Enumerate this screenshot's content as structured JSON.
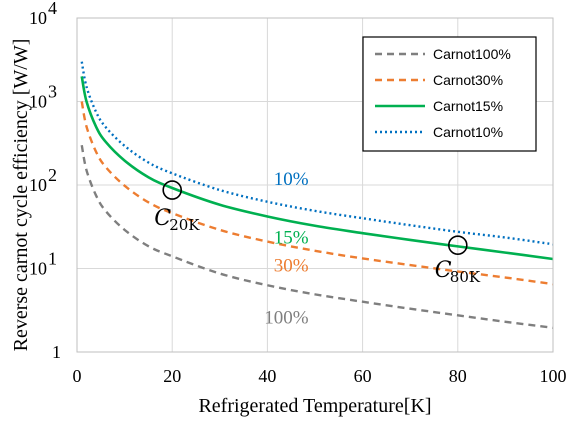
{
  "chart_data": {
    "type": "line",
    "xlabel": "Refrigerated Temperature[K]",
    "ylabel": "Reverse carnot cycle efficiency [W/W]",
    "xlim": [
      0,
      100
    ],
    "ylim": [
      1,
      10000
    ],
    "yscale": "log",
    "grid": true,
    "legend_position": "top-right",
    "x_ticks": [
      {
        "value": 0,
        "label": "0"
      },
      {
        "value": 20,
        "label": "20"
      },
      {
        "value": 40,
        "label": "40"
      },
      {
        "value": 60,
        "label": "60"
      },
      {
        "value": 80,
        "label": "80"
      },
      {
        "value": 100,
        "label": "100"
      }
    ],
    "y_ticks": [
      {
        "value": 1,
        "base": "1",
        "exp": ""
      },
      {
        "value": 10,
        "base": "10",
        "exp": "1"
      },
      {
        "value": 100,
        "base": "10",
        "exp": "2"
      },
      {
        "value": 1000,
        "base": "10",
        "exp": "3"
      },
      {
        "value": 10000,
        "base": "10",
        "exp": "4"
      }
    ],
    "x": [
      1,
      2,
      4,
      6,
      10,
      15,
      20,
      30,
      40,
      50,
      60,
      70,
      80,
      90,
      100
    ],
    "series": [
      {
        "name": "Carnot100%",
        "color": "#7f7f7f",
        "dash": "dashed",
        "values": [
          300,
          150,
          75,
          49,
          29,
          18.5,
          14,
          8.7,
          6.3,
          4.9,
          4,
          3.3,
          2.75,
          2.3,
          1.95
        ]
      },
      {
        "name": "Carnot30%",
        "color": "#ed7d31",
        "dash": "dashed",
        "values": [
          1000,
          500,
          250,
          165,
          98,
          62,
          46,
          29,
          21,
          16.3,
          13.2,
          11,
          9.2,
          7.8,
          6.5
        ]
      },
      {
        "name": "Carnot15%",
        "color": "#00b050",
        "dash": "solid",
        "values": [
          2000,
          1000,
          500,
          330,
          196,
          124,
          92,
          58,
          42,
          32.5,
          26.5,
          22,
          18.4,
          15.5,
          13
        ]
      },
      {
        "name": "Carnot10%",
        "color": "#0070c0",
        "dash": "dotted",
        "values": [
          3000,
          1500,
          750,
          495,
          294,
          186,
          138,
          87,
          63,
          49,
          40,
          33,
          27.5,
          23.5,
          19.5
        ]
      }
    ],
    "annotations": [
      {
        "text": "10%",
        "x": 45,
        "y": 100,
        "color": "#0070c0"
      },
      {
        "text": "15%",
        "x": 45,
        "y": 20,
        "color": "#00b050"
      },
      {
        "text": "30%",
        "x": 45,
        "y": 9.2,
        "color": "#ed7d31"
      },
      {
        "text": "100%",
        "x": 44,
        "y": 2.2,
        "color": "#7f7f7f"
      }
    ],
    "markers": [
      {
        "label": "C",
        "subscript": "20K",
        "x": 20,
        "y": 87
      },
      {
        "label": "C",
        "subscript": "80K",
        "x": 80,
        "y": 19
      }
    ]
  }
}
